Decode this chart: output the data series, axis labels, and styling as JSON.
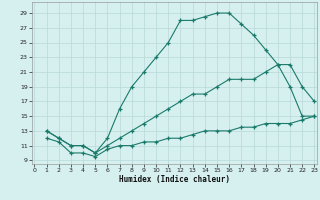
{
  "xlabel": "Humidex (Indice chaleur)",
  "bg_color": "#d6f0f0",
  "grid_color": "#b8d8d8",
  "line_color": "#1a7a6a",
  "curve1_x": [
    1,
    2,
    3,
    4,
    5,
    6,
    7,
    8,
    9,
    10,
    11,
    12,
    13,
    14,
    15,
    16,
    17,
    18,
    19,
    20,
    21,
    22,
    23
  ],
  "curve1_y": [
    13,
    12,
    11,
    11,
    10,
    12,
    16,
    19,
    21,
    23,
    25,
    28,
    28,
    28.5,
    29,
    29,
    27.5,
    26,
    24,
    22,
    19,
    15,
    15
  ],
  "curve2_x": [
    1,
    2,
    3,
    4,
    5,
    6,
    7,
    8,
    9,
    10,
    11,
    12,
    13,
    14,
    15,
    16,
    17,
    18,
    19,
    20,
    21,
    22,
    23
  ],
  "curve2_y": [
    13,
    12,
    11,
    11,
    10,
    11,
    12,
    13,
    14,
    15,
    16,
    17,
    18,
    18,
    19,
    20,
    20,
    20,
    21,
    22,
    22,
    19,
    17
  ],
  "curve3_x": [
    1,
    2,
    3,
    4,
    5,
    6,
    7,
    8,
    9,
    10,
    11,
    12,
    13,
    14,
    15,
    16,
    17,
    18,
    19,
    20,
    21,
    22,
    23
  ],
  "curve3_y": [
    12,
    11.5,
    10,
    10,
    9.5,
    10.5,
    11,
    11,
    11.5,
    11.5,
    12,
    12,
    12.5,
    13,
    13,
    13,
    13.5,
    13.5,
    14,
    14,
    14,
    14.5,
    15
  ],
  "xlim": [
    -0.2,
    23.2
  ],
  "ylim": [
    8.5,
    30.5
  ],
  "yticks": [
    9,
    11,
    13,
    15,
    17,
    19,
    21,
    23,
    25,
    27,
    29
  ],
  "xticks": [
    0,
    1,
    2,
    3,
    4,
    5,
    6,
    7,
    8,
    9,
    10,
    11,
    12,
    13,
    14,
    15,
    16,
    17,
    18,
    19,
    20,
    21,
    22,
    23
  ]
}
